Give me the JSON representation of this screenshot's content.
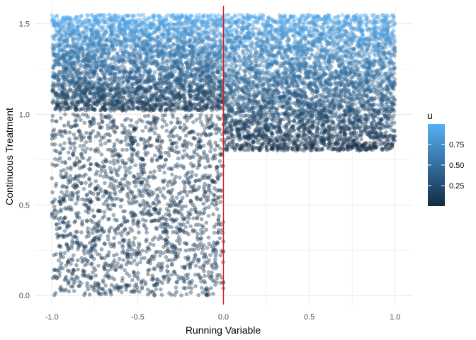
{
  "chart_data": {
    "type": "scatter",
    "title": "",
    "xlabel": "Running Variable",
    "ylabel": "Continuous Treatment",
    "xlim": [
      -1.1,
      1.1
    ],
    "ylim": [
      -0.05,
      1.6
    ],
    "x_ticks": [
      "-1.0",
      "-0.5",
      "0.0",
      "0.5",
      "1.0"
    ],
    "y_ticks": [
      "0.0",
      "0.5",
      "1.0",
      "1.5"
    ],
    "grid": true,
    "cutoff_line": {
      "x": 0.0,
      "color": "#e41a1c"
    },
    "legend": {
      "title": "u",
      "position": "right",
      "type": "colorbar",
      "ticks": [
        "0.25",
        "0.50",
        "0.75"
      ],
      "low_color": "#132B43",
      "high_color": "#56B1F7"
    },
    "point_opacity": 0.4,
    "regions": [
      {
        "name": "left-upper",
        "x_range": [
          -1.0,
          0.0
        ],
        "y_range": [
          1.02,
          1.55
        ],
        "color_by": "u (lighter near top)"
      },
      {
        "name": "left-lower",
        "x_range": [
          -1.0,
          0.0
        ],
        "y_range": [
          0.0,
          1.0
        ],
        "color_by": "u (dark)"
      },
      {
        "name": "right",
        "x_range": [
          0.0,
          1.0
        ],
        "y_range": [
          0.8,
          1.55
        ],
        "color_by": "u (dark near 0.8, light near 1.55)"
      }
    ],
    "n_points_approx": 10000
  }
}
